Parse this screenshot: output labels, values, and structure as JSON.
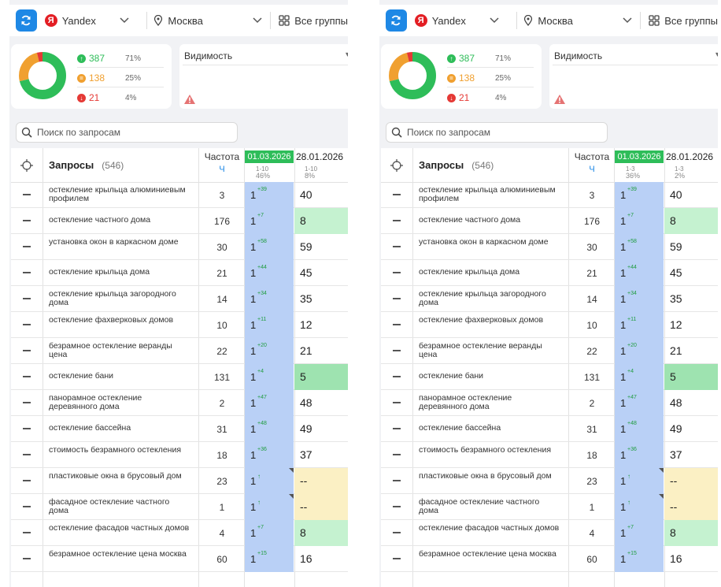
{
  "toolbar": {
    "engine": "Yandex",
    "region": "Москва",
    "groups": "Все группы"
  },
  "stats": {
    "up": {
      "count": "387",
      "pct": "71%"
    },
    "same": {
      "count": "138",
      "pct": "25%"
    },
    "down": {
      "count": "21",
      "pct": "4%"
    }
  },
  "visibility": {
    "title": "Видимость"
  },
  "search": {
    "placeholder": "Поиск по запросам"
  },
  "table": {
    "queries_label": "Запросы",
    "queries_count": "(546)",
    "freq_label": "Частота",
    "freq_sub": "Ч",
    "date1": "01.03.2026",
    "date2": "28.01.2026"
  },
  "panels": [
    {
      "date1_range": "1-10",
      "date1_pct": "46%",
      "date2_range": "1-10",
      "date2_pct": "8%"
    },
    {
      "date1_range": "1-3",
      "date1_pct": "36%",
      "date2_range": "1-3",
      "date2_pct": "2%"
    }
  ],
  "rows": [
    {
      "query": "остекление крыльца алюминиевым профилем",
      "freq": "3",
      "pos1": "1",
      "delta": "+39",
      "pos2": "40",
      "hl": ""
    },
    {
      "query": "остекление частного дома",
      "freq": "176",
      "pos1": "1",
      "delta": "+7",
      "pos2": "8",
      "hl": "green"
    },
    {
      "query": "установка окон в каркасном доме",
      "freq": "30",
      "pos1": "1",
      "delta": "+58",
      "pos2": "59",
      "hl": ""
    },
    {
      "query": "остекление крыльца дома",
      "freq": "21",
      "pos1": "1",
      "delta": "+44",
      "pos2": "45",
      "hl": ""
    },
    {
      "query": "остекление крыльца загородного дома",
      "freq": "14",
      "pos1": "1",
      "delta": "+34",
      "pos2": "35",
      "hl": ""
    },
    {
      "query": "остекление фахверковых домов",
      "freq": "10",
      "pos1": "1",
      "delta": "+11",
      "pos2": "12",
      "hl": ""
    },
    {
      "query": "безрамное остекление веранды цена",
      "freq": "22",
      "pos1": "1",
      "delta": "+20",
      "pos2": "21",
      "hl": ""
    },
    {
      "query": "остекление бани",
      "freq": "131",
      "pos1": "1",
      "delta": "+4",
      "pos2": "5",
      "hl": "green2"
    },
    {
      "query": "панорамное остекление деревянного дома",
      "freq": "2",
      "pos1": "1",
      "delta": "+47",
      "pos2": "48",
      "hl": ""
    },
    {
      "query": "остекление бассейна",
      "freq": "31",
      "pos1": "1",
      "delta": "+48",
      "pos2": "49",
      "hl": ""
    },
    {
      "query": "стоимость безрамного остекления",
      "freq": "18",
      "pos1": "1",
      "delta": "+36",
      "pos2": "37",
      "hl": ""
    },
    {
      "query": "пластиковые окна в брусовый дом",
      "freq": "23",
      "pos1": "1",
      "delta": "↑",
      "pos2": "--",
      "hl": "yellow",
      "corner": true
    },
    {
      "query": "фасадное остекление частного дома",
      "freq": "1",
      "pos1": "1",
      "delta": "↑",
      "pos2": "--",
      "hl": "yellow",
      "corner": true
    },
    {
      "query": "остекление фасадов частных домов",
      "freq": "4",
      "pos1": "1",
      "delta": "+7",
      "pos2": "8",
      "hl": "green"
    },
    {
      "query": "безрамное остекление цена москва",
      "freq": "60",
      "pos1": "1",
      "delta": "+15",
      "pos2": "16",
      "hl": ""
    }
  ],
  "colors": {
    "up": "#2ebd59",
    "same": "#f0a030",
    "down": "#e53935",
    "accent": "#1e88e5",
    "date_badge": "#2ebd59",
    "position_column": "#b9d0f6"
  }
}
